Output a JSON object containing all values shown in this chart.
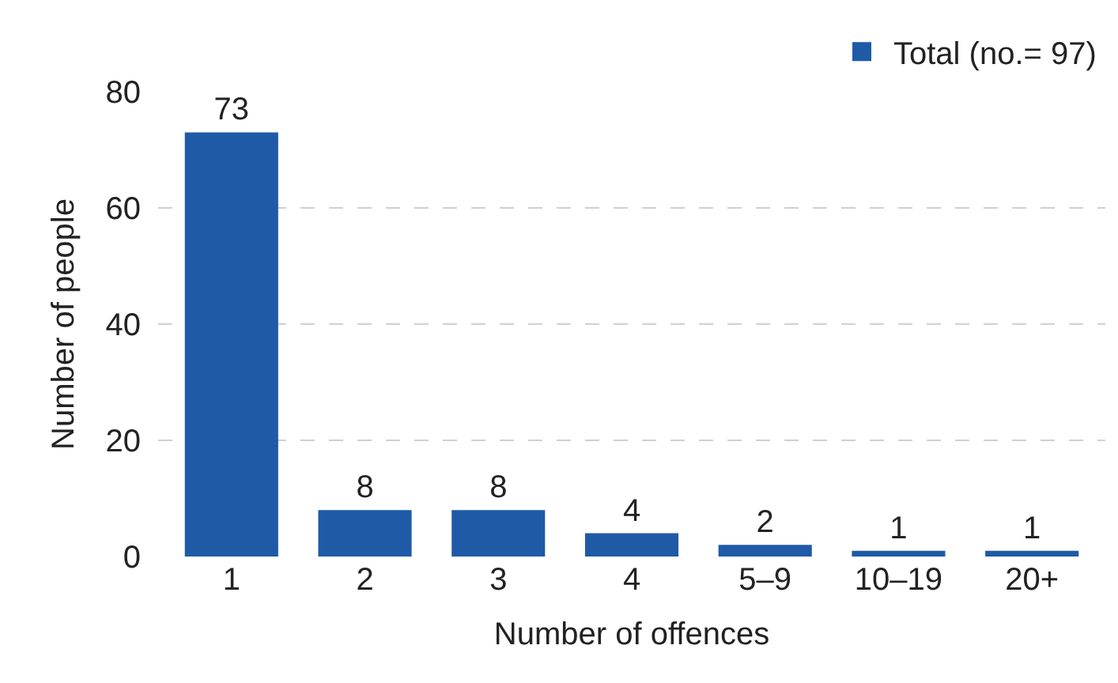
{
  "chart_data": {
    "type": "bar",
    "xlabel": "Number of offences",
    "ylabel": "Number of people",
    "categories": [
      "1",
      "2",
      "3",
      "4",
      "5–9",
      "10–19",
      "20+"
    ],
    "series": [
      {
        "name": "Total (no.= 97)",
        "color": "#1f5aa6",
        "values": [
          73,
          8,
          8,
          4,
          2,
          1,
          1
        ]
      }
    ],
    "ylim": [
      0,
      80
    ],
    "yticks": [
      0,
      20,
      40,
      60,
      80
    ],
    "grid": "y",
    "legend": "top right",
    "data_labels": true
  }
}
